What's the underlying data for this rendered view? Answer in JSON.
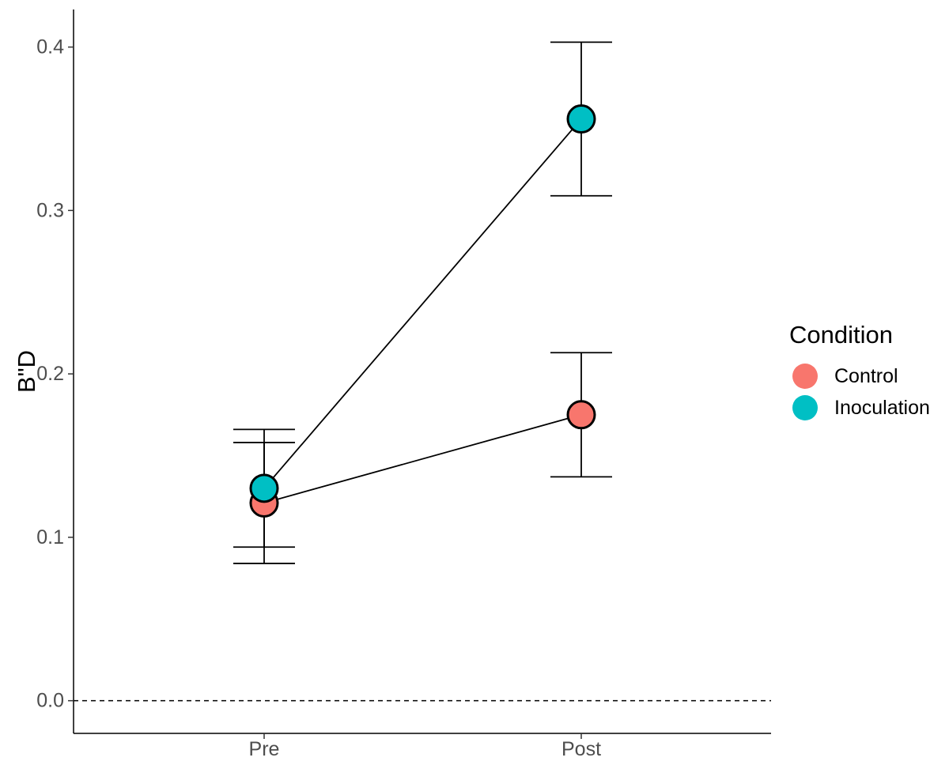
{
  "chart_data": {
    "type": "line",
    "title": "",
    "xlabel": "",
    "ylabel": "B\"D",
    "categories": [
      "Pre",
      "Post"
    ],
    "ylim": [
      -0.02,
      0.423
    ],
    "yticks": [
      0.0,
      0.1,
      0.2,
      0.3,
      0.4
    ],
    "ytick_labels": [
      "0.0",
      "0.1",
      "0.2",
      "0.3",
      "0.4"
    ],
    "reference_line": {
      "y": 0.0,
      "style": "dashed"
    },
    "grid": false,
    "legend": {
      "title": "Condition",
      "position": "right",
      "entries": [
        "Control",
        "Inoculation"
      ]
    },
    "series": [
      {
        "name": "Control",
        "color": "#F8766D",
        "values": [
          0.121,
          0.175
        ],
        "lower": [
          0.084,
          0.137
        ],
        "upper": [
          0.158,
          0.213
        ]
      },
      {
        "name": "Inoculation",
        "color": "#00BFC4",
        "values": [
          0.13,
          0.356
        ],
        "lower": [
          0.094,
          0.309
        ],
        "upper": [
          0.166,
          0.403
        ]
      }
    ]
  }
}
